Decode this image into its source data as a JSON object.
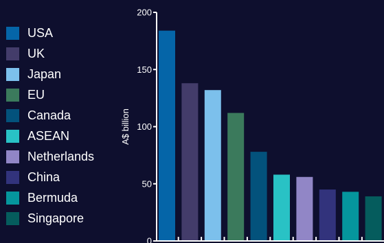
{
  "chart_data": {
    "type": "bar",
    "categories": [
      "USA",
      "UK",
      "Japan",
      "EU",
      "Canada",
      "ASEAN",
      "Netherlands",
      "China",
      "Bermuda",
      "Singapore"
    ],
    "values": [
      184,
      138,
      132,
      112,
      78,
      58,
      56,
      45,
      43,
      39
    ],
    "colors": [
      "#0565a8",
      "#433c6a",
      "#7cc0ec",
      "#3b7a5c",
      "#03527c",
      "#29c2c5",
      "#9186c6",
      "#32337c",
      "#05969d",
      "#055c5d"
    ],
    "ylabel": "A$ billion",
    "ylim": [
      0,
      200
    ],
    "yticks": [
      0,
      50,
      100,
      150,
      200
    ],
    "legend_position": "left",
    "grid": false
  }
}
